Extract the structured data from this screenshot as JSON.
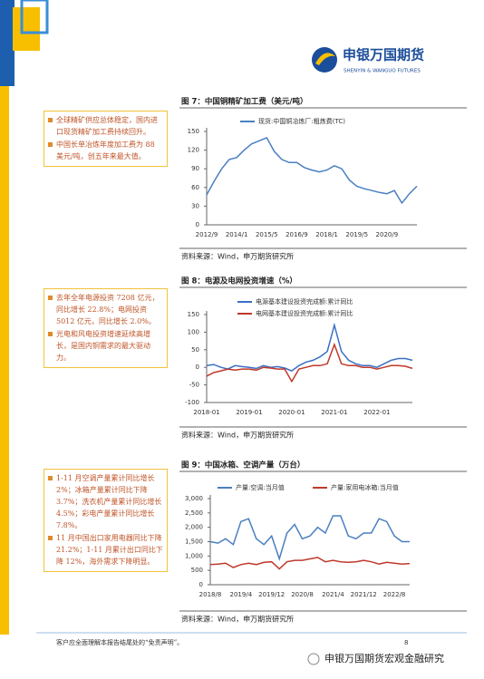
{
  "header": {
    "logo_cn": "申银万国期货",
    "logo_en": "SHENYIN & WANGUO FUTURES"
  },
  "sections": [
    {
      "title": "图 7：中国铜精矿加工费（美元/吨）",
      "notes": [
        "全球精矿供应总体稳定，国内进口现货精矿加工费持续回升。",
        "中国长单冶炼年度加工费为 88 美元/吨，创五年来最大值。"
      ],
      "chart": {
        "type": "line",
        "categories": [
          "2012/9",
          null,
          null,
          null,
          "2014/1",
          null,
          null,
          null,
          "2015/5",
          null,
          null,
          null,
          "2016/9",
          null,
          null,
          null,
          "2018/1",
          null,
          null,
          null,
          "2019/5",
          null,
          null,
          null,
          "2020/9",
          null,
          null,
          null,
          null
        ],
        "series": [
          {
            "name": "现货:中国铜冶炼厂:粗炼费(TC)",
            "color": "#4a7fc1",
            "values": [
              48,
              70,
              90,
              105,
              108,
              120,
              130,
              135,
              140,
              118,
              105,
              100,
              100,
              92,
              88,
              85,
              88,
              95,
              90,
              72,
              62,
              58,
              55,
              52,
              50,
              55,
              35,
              50,
              62
            ]
          }
        ],
        "ylim": [
          0,
          150
        ],
        "yticks": [
          0,
          30,
          60,
          90,
          120,
          150
        ]
      },
      "source": "资料来源：Wind，申万期货研究所"
    },
    {
      "title": "图 8：电源及电网投资增速（%）",
      "notes": [
        "去年全年电源投资 7208 亿元，同比增长 22.8%；电网投资 5012 亿元，同比增长 2.0%。",
        "光电和风电投资增速延续高增长，是国内铜需求的最大驱动力。"
      ],
      "chart": {
        "type": "line",
        "categories": [
          "2018-01",
          null,
          null,
          null,
          null,
          null,
          "2019-01",
          null,
          null,
          null,
          null,
          null,
          "2020-01",
          null,
          null,
          null,
          null,
          null,
          "2021-01",
          null,
          null,
          null,
          null,
          null,
          "2022-01",
          null,
          null,
          null,
          null,
          null
        ],
        "series": [
          {
            "name": "电源基本建设投资完成额:累计同比",
            "color": "#3a6fc4",
            "values": [
              5,
              8,
              0,
              -5,
              5,
              2,
              0,
              -3,
              5,
              0,
              2,
              -2,
              -10,
              5,
              15,
              20,
              30,
              45,
              120,
              45,
              20,
              10,
              5,
              5,
              0,
              10,
              20,
              25,
              25,
              20
            ]
          },
          {
            "name": "电网基本建设投资完成额:累计同比",
            "color": "#c0392b",
            "values": [
              -25,
              -15,
              -10,
              -5,
              -8,
              -5,
              -5,
              -8,
              0,
              -2,
              -5,
              -5,
              -40,
              -5,
              0,
              5,
              5,
              10,
              65,
              10,
              5,
              5,
              0,
              0,
              -5,
              0,
              5,
              5,
              3,
              -3
            ]
          }
        ],
        "ylim": [
          -100,
          150
        ],
        "yticks": [
          -100,
          -50,
          0,
          50,
          100,
          150
        ]
      },
      "source": "资料来源：Wind，申万期货研究所"
    },
    {
      "title": "图 9：中国冰箱、空调产量（万台）",
      "notes": [
        "1-11 月空调产量累计同比增长 2%；冰箱产量累计同比下降 3.7%；洗衣机产量累计同比增长 4.5%；彩电产量累计同比增长 7.8%。",
        "11 月中国出口家用电器同比下降 21.2%；1-11 月累计出口同比下降 12%，海外需求下降明显。"
      ],
      "chart": {
        "type": "line",
        "categories": [
          "2018/8",
          null,
          null,
          null,
          "2019/4",
          null,
          null,
          null,
          "2019/12",
          null,
          null,
          null,
          "2020/8",
          null,
          null,
          null,
          "2021/4",
          null,
          null,
          null,
          "2021/12",
          null,
          null,
          null,
          "2022/8",
          null,
          null
        ],
        "series": [
          {
            "name": "产量:空调:当月值",
            "color": "#4a7fc1",
            "values": [
              1500,
              1450,
              1600,
              1400,
              2200,
              2300,
              1600,
              1400,
              1700,
              900,
              1800,
              2100,
              1600,
              1700,
              2000,
              1800,
              2400,
              2400,
              1700,
              1600,
              1800,
              1800,
              2300,
              2200,
              1700,
              1500,
              1500
            ]
          },
          {
            "name": "产量:家用电冰箱:当月值",
            "color": "#c0392b",
            "values": [
              700,
              720,
              750,
              600,
              700,
              750,
              700,
              780,
              800,
              550,
              800,
              850,
              850,
              900,
              950,
              800,
              850,
              800,
              780,
              800,
              850,
              800,
              720,
              780,
              750,
              720,
              740
            ]
          }
        ],
        "ylim": [
          0,
          3000
        ],
        "yticks": [
          0,
          500,
          {
            "value": 1000,
            "label": "1,000"
          },
          {
            "value": 1500,
            "label": "1,500"
          },
          {
            "value": 2000,
            "label": "2,000"
          },
          {
            "value": 2500,
            "label": "2,500"
          },
          {
            "value": 3000,
            "label": "3,000"
          }
        ]
      },
      "source": "资料来源：Wind，申万期货研究所"
    }
  ],
  "footer": {
    "disclaimer": "客户应全面理解本报告结尾处的“免责声明”。",
    "page": "8",
    "watermark": "申银万国期货宏观金融研究"
  }
}
